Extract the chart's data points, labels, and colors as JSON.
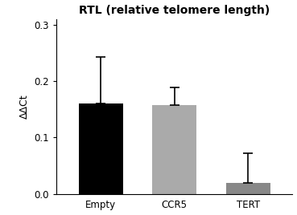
{
  "title": "RTL (relative telomere length)",
  "ylabel": "ΔΔCt",
  "categories": [
    "Empty",
    "CCR5",
    "TERT"
  ],
  "values": [
    0.16,
    0.158,
    0.02
  ],
  "errors": [
    0.082,
    0.03,
    0.052
  ],
  "bar_colors": [
    "#000000",
    "#aaaaaa",
    "#888888"
  ],
  "bar_width": 0.6,
  "ylim": [
    0,
    0.31
  ],
  "yticks": [
    0.0,
    0.1,
    0.2,
    0.3
  ],
  "title_fontsize": 10,
  "label_fontsize": 9,
  "tick_fontsize": 8.5,
  "capsize": 4,
  "error_linewidth": 1.2,
  "background_color": "#ffffff",
  "font_family": "Arial"
}
